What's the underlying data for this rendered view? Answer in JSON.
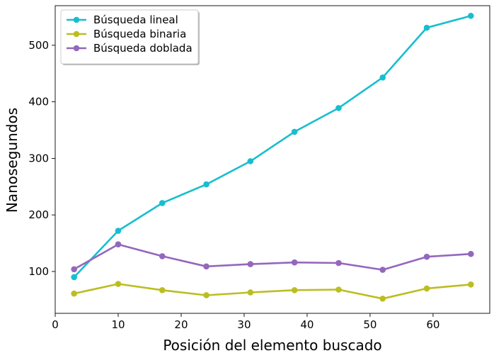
{
  "chart_data": {
    "type": "line",
    "xlabel": "Posición del elemento buscado",
    "ylabel": "Nanosegundos",
    "xlim": [
      0,
      69
    ],
    "ylim": [
      26,
      570
    ],
    "xticks": [
      0,
      10,
      20,
      30,
      40,
      50,
      60
    ],
    "yticks": [
      100,
      200,
      300,
      400,
      500
    ],
    "grid": false,
    "legend_position": "top-left",
    "x": [
      3,
      10,
      17,
      24,
      31,
      38,
      45,
      52,
      59,
      66
    ],
    "series": [
      {
        "name": "Búsqueda lineal",
        "color": "#17becf",
        "values": [
          90,
          172,
          221,
          254,
          295,
          347,
          389,
          443,
          531,
          552
        ]
      },
      {
        "name": "Búsqueda binaria",
        "color": "#bcbd22",
        "values": [
          61,
          78,
          67,
          58,
          63,
          67,
          68,
          52,
          70,
          77
        ]
      },
      {
        "name": "Búsqueda doblada",
        "color": "#9467bd",
        "values": [
          104,
          148,
          127,
          109,
          113,
          116,
          115,
          103,
          126,
          131
        ]
      }
    ]
  }
}
